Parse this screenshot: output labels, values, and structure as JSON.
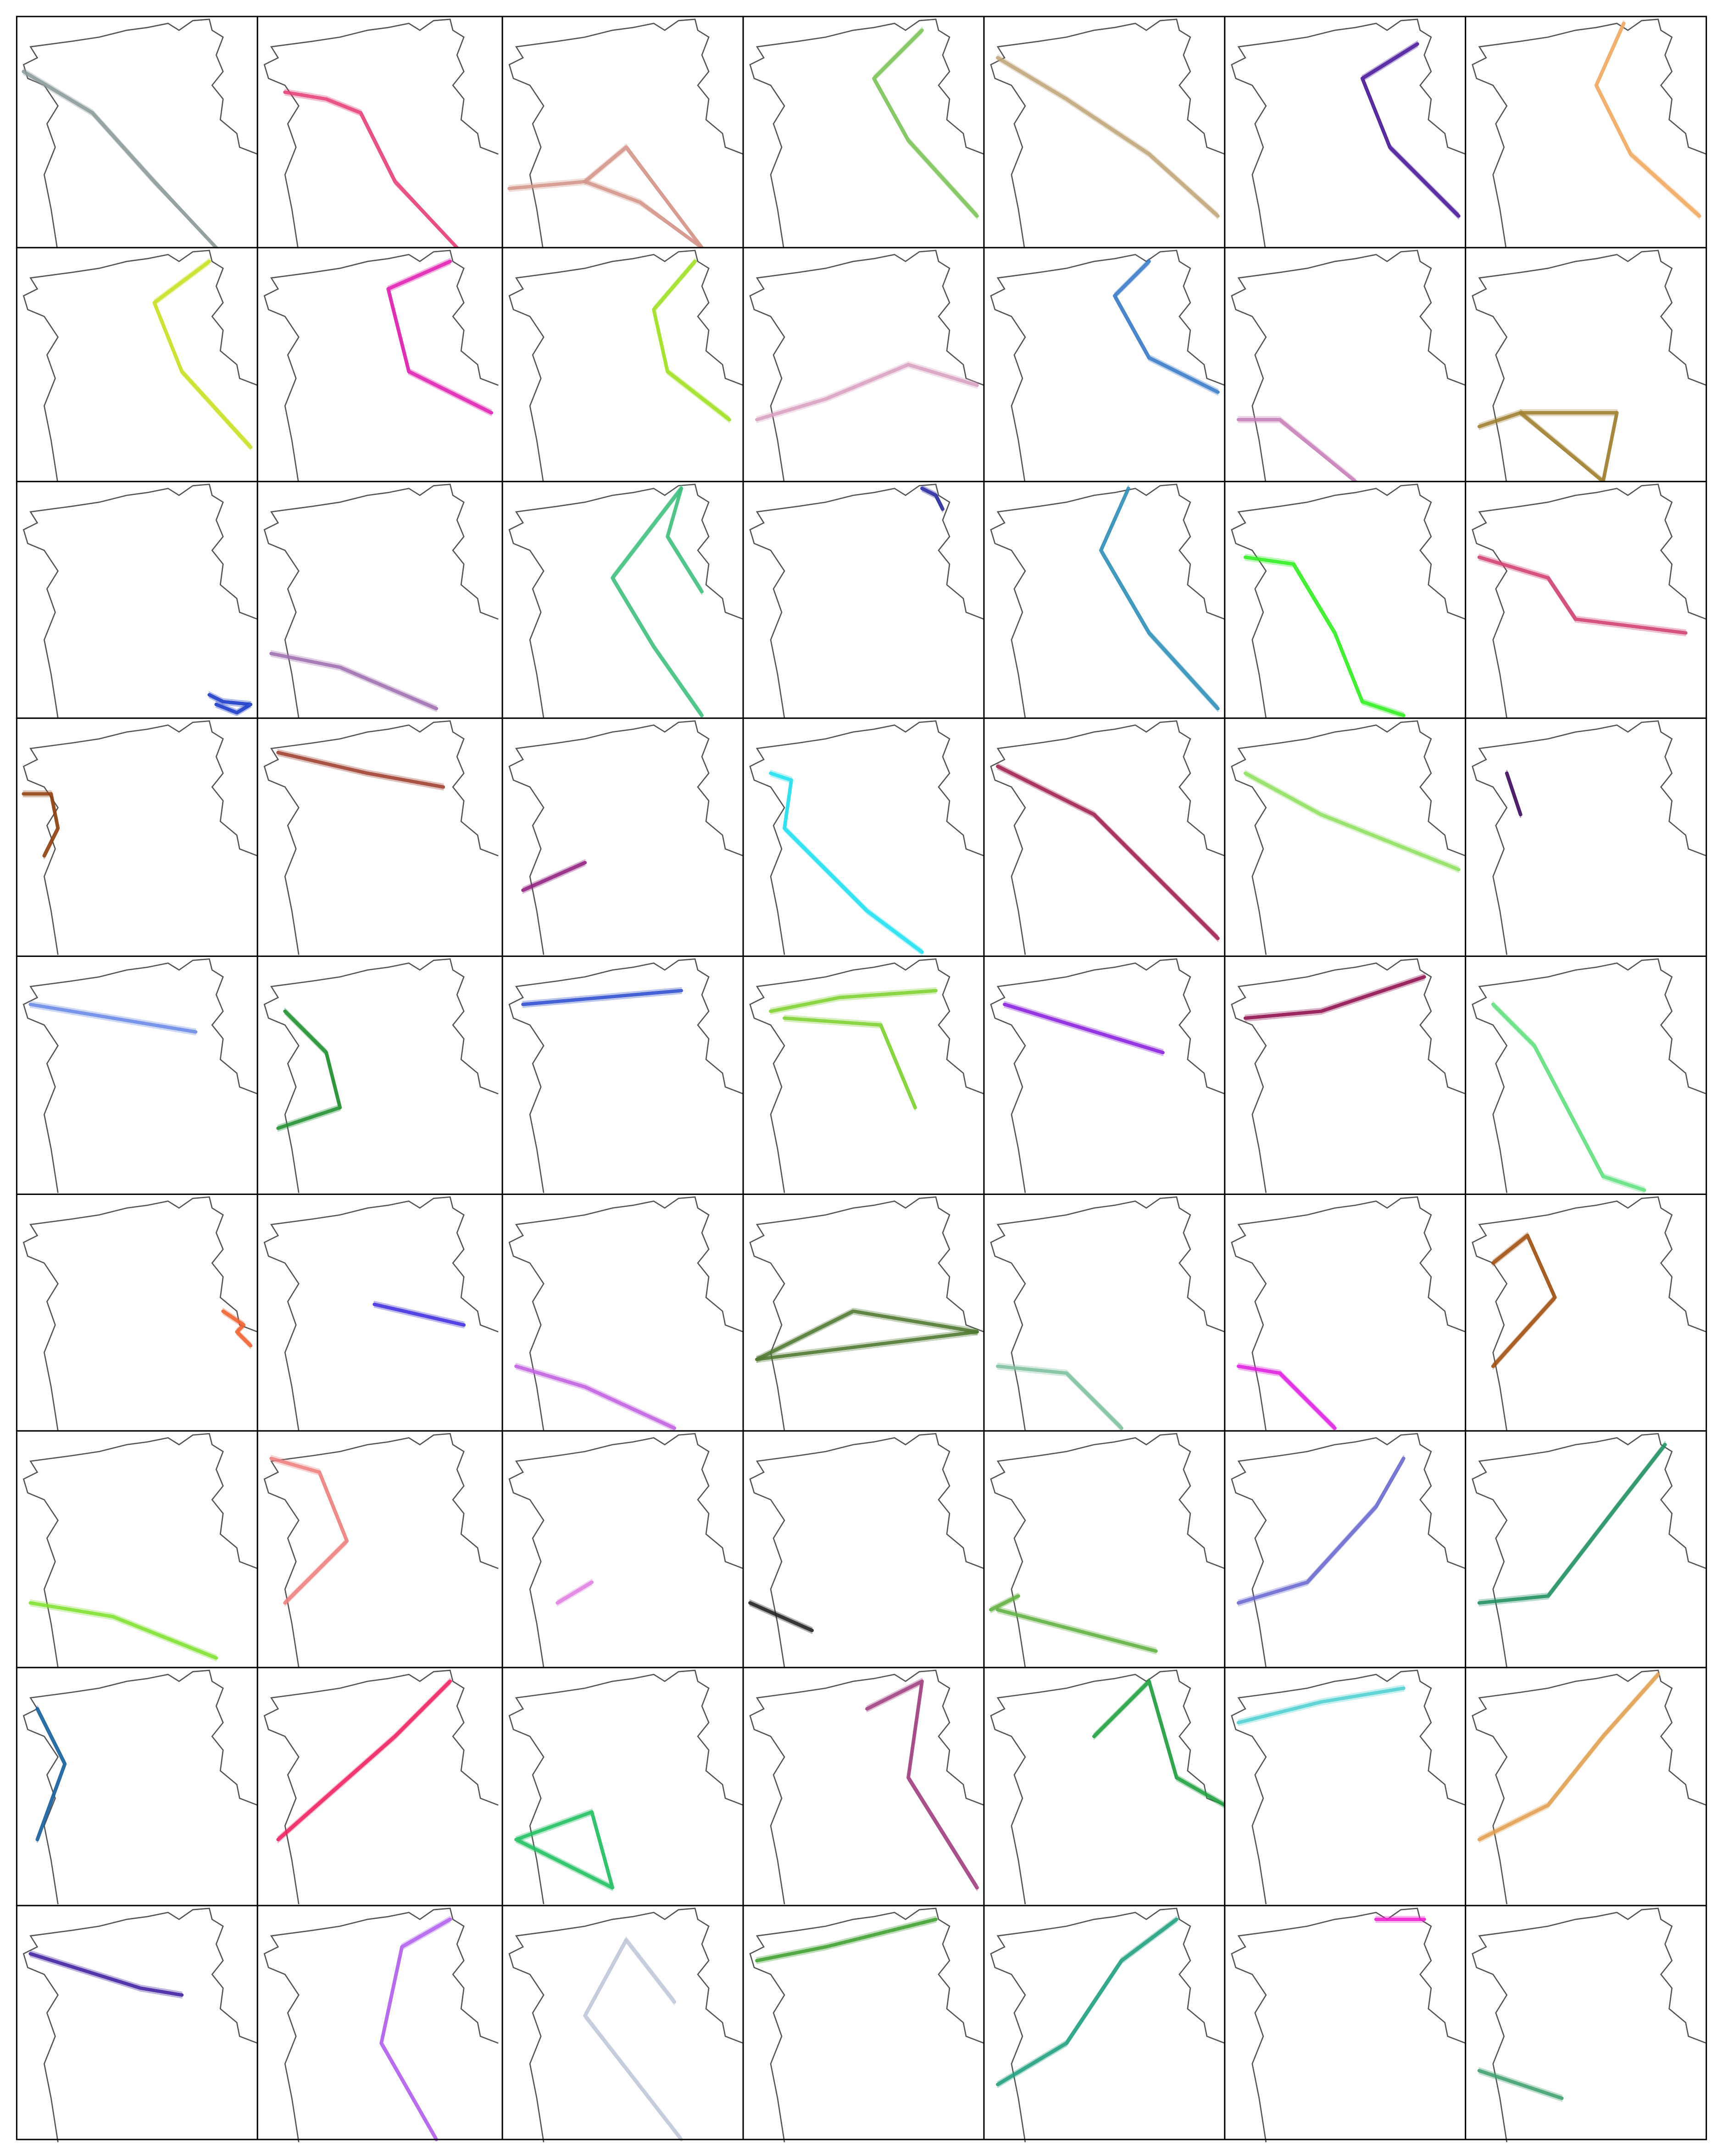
{
  "panels": [
    {
      "color": "#8c9a9a"
    },
    {
      "color": "#e8407a"
    },
    {
      "color": "#d4958a"
    },
    {
      "color": "#7cc35a"
    },
    {
      "color": "#c0a67a"
    },
    {
      "color": "#4a1a9a"
    },
    {
      "color": "#f0aa60"
    },
    {
      "color": "#c8e020"
    },
    {
      "color": "#e020b0"
    },
    {
      "color": "#a0e020"
    },
    {
      "color": "#d8a0c0"
    },
    {
      "color": "#3a7ac8"
    },
    {
      "color": "#c880b8"
    },
    {
      "color": "#a08030"
    },
    {
      "color": "#1a3ac8"
    },
    {
      "color": "#a070b0"
    },
    {
      "color": "#40c080"
    },
    {
      "color": "#2a2aa0"
    },
    {
      "color": "#3090b8"
    },
    {
      "color": "#30f020"
    },
    {
      "color": "#d04070"
    },
    {
      "color": "#904010"
    },
    {
      "color": "#a04030"
    },
    {
      "color": "#902080"
    },
    {
      "color": "#20e0f0"
    },
    {
      "color": "#a02050"
    },
    {
      "color": "#90e060"
    },
    {
      "color": "#401060"
    },
    {
      "color": "#6a8ae8"
    },
    {
      "color": "#209030"
    },
    {
      "color": "#3050d0"
    },
    {
      "color": "#80d030"
    },
    {
      "color": "#8a20e0"
    },
    {
      "color": "#901050"
    },
    {
      "color": "#60e080"
    },
    {
      "color": "#f06030"
    },
    {
      "color": "#4030e0"
    },
    {
      "color": "#c060e0"
    },
    {
      "color": "#507830"
    },
    {
      "color": "#80c0a0"
    },
    {
      "color": "#e020e0"
    },
    {
      "color": "#a05010"
    },
    {
      "color": "#80e030"
    },
    {
      "color": "#f08080"
    },
    {
      "color": "#e080e0"
    },
    {
      "color": "#202020"
    },
    {
      "color": "#60b040"
    },
    {
      "color": "#6a6ad0"
    },
    {
      "color": "#209060"
    },
    {
      "color": "#1a60a0"
    },
    {
      "color": "#f02060"
    },
    {
      "color": "#20c060"
    },
    {
      "color": "#a04080"
    },
    {
      "color": "#20a040"
    },
    {
      "color": "#50d0d0"
    },
    {
      "color": "#e0a050"
    },
    {
      "color": "#4020a0"
    },
    {
      "color": "#b060f0"
    },
    {
      "color": "#c0c8d8"
    },
    {
      "color": "#40a030"
    },
    {
      "color": "#20a080"
    },
    {
      "color": "#f020d0"
    },
    {
      "color": "#40a070"
    }
  ]
}
